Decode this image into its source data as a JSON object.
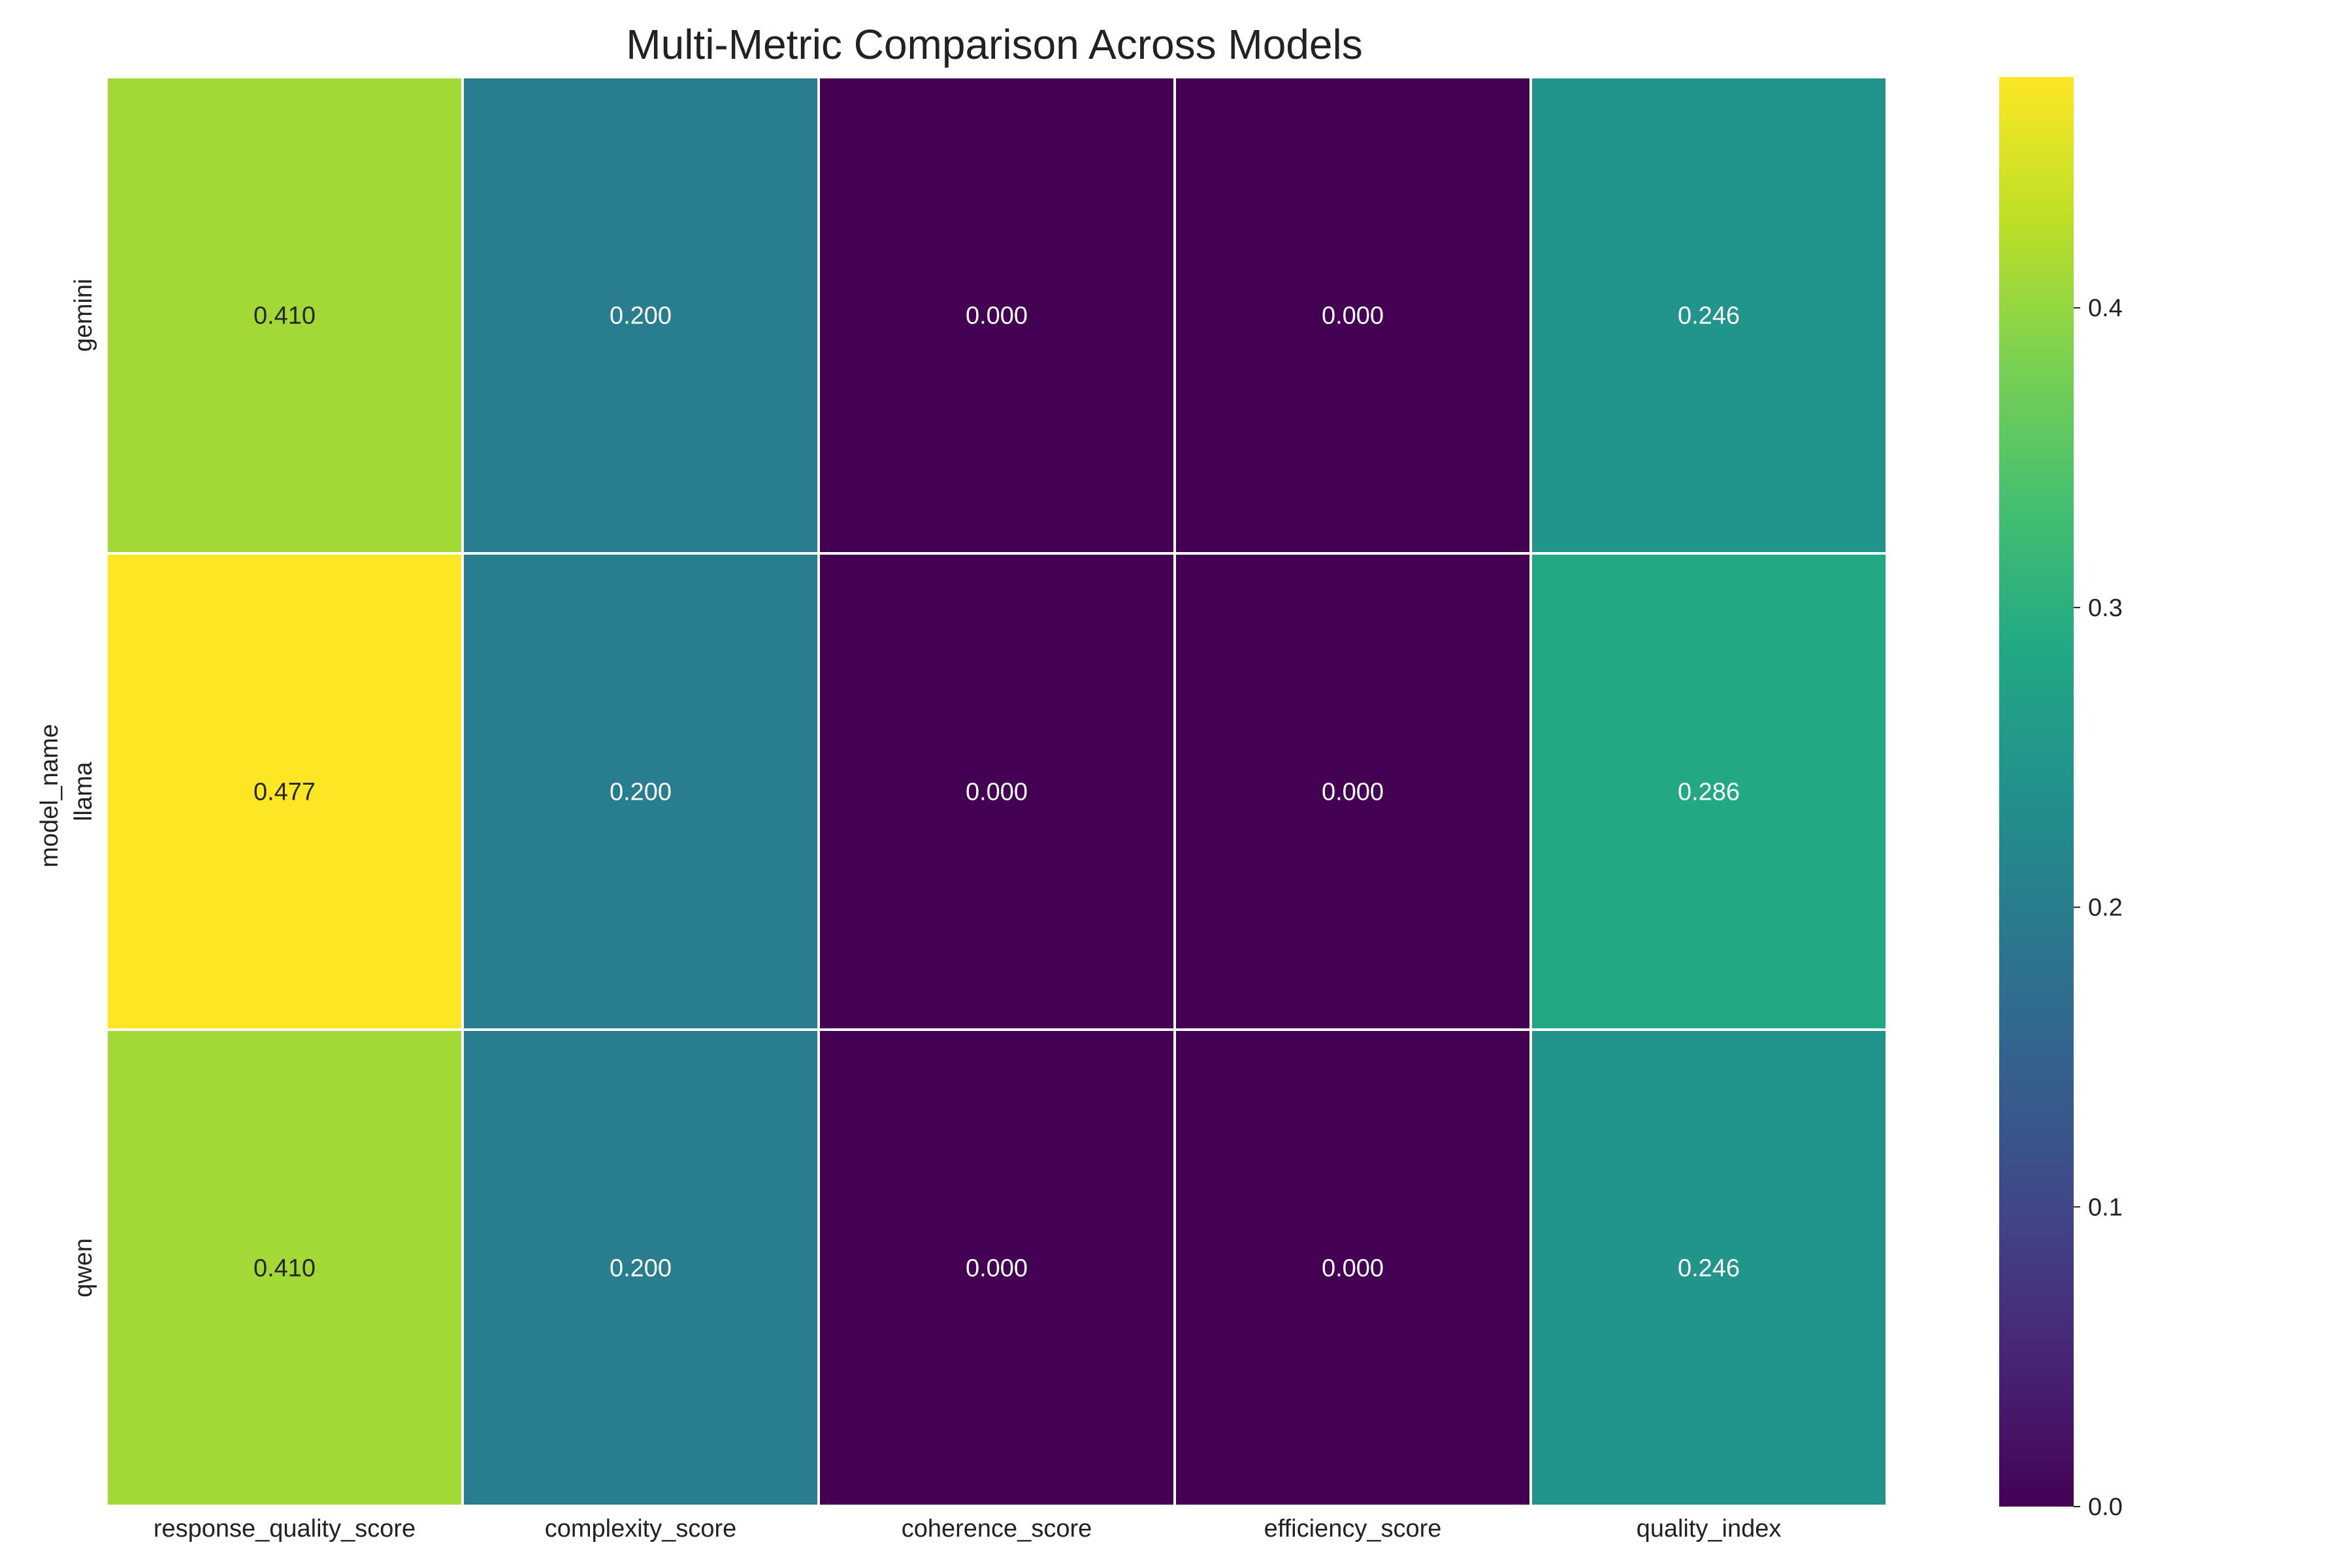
{
  "chart_data": {
    "type": "heatmap",
    "title": "Multi-Metric Comparison Across Models",
    "xlabel": "",
    "ylabel": "model_name",
    "columns": [
      "response_quality_score",
      "complexity_score",
      "coherence_score",
      "efficiency_score",
      "quality_index"
    ],
    "rows": [
      "gemini",
      "llama",
      "qwen"
    ],
    "values": [
      [
        0.41,
        0.2,
        0.0,
        0.0,
        0.246
      ],
      [
        0.477,
        0.2,
        0.0,
        0.0,
        0.286
      ],
      [
        0.41,
        0.2,
        0.0,
        0.0,
        0.246
      ]
    ],
    "annotations": [
      [
        "0.410",
        "0.200",
        "0.000",
        "0.000",
        "0.246"
      ],
      [
        "0.477",
        "0.200",
        "0.000",
        "0.000",
        "0.286"
      ],
      [
        "0.410",
        "0.200",
        "0.000",
        "0.000",
        "0.246"
      ]
    ],
    "colormap": "viridis",
    "vmin": 0.0,
    "vmax": 0.477,
    "colorbar_ticks": [
      "0.0",
      "0.1",
      "0.2",
      "0.3",
      "0.4"
    ],
    "grid": false,
    "legend": "colorbar-right"
  }
}
